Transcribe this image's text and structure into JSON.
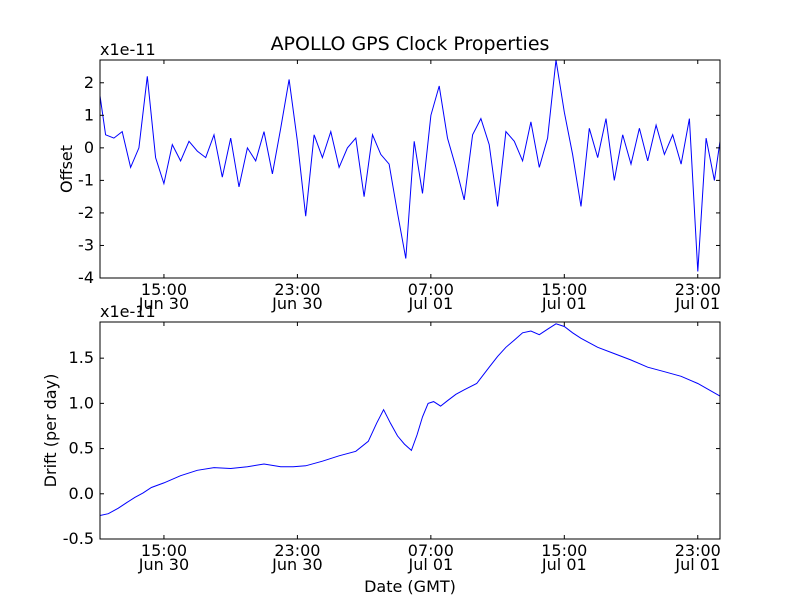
{
  "figure": {
    "title": "APOLLO GPS Clock Properties"
  },
  "chart_data": [
    {
      "type": "line",
      "title": "APOLLO GPS Clock Properties",
      "xlabel": "",
      "ylabel": "Offset",
      "y_exponent_label": "x1e-11",
      "xlim": [
        "Jun 30 11:10",
        "Jul 01 24:20"
      ],
      "ylim": [
        -4,
        2.7
      ],
      "yticks": [
        -4,
        -3,
        -2,
        -1,
        0,
        1,
        2
      ],
      "xticks": [
        {
          "time": "Jun 30 15:00",
          "line1": "15:00",
          "line2": "Jun 30"
        },
        {
          "time": "Jun 30 23:00",
          "line1": "23:00",
          "line2": "Jun 30"
        },
        {
          "time": "Jul 01 07:00",
          "line1": "07:00",
          "line2": "Jul 01"
        },
        {
          "time": "Jul 01 15:00",
          "line1": "15:00",
          "line2": "Jul 01"
        },
        {
          "time": "Jul 01 23:00",
          "line1": "23:00",
          "line2": "Jul 01"
        }
      ],
      "color": "#0000ff",
      "grid": false,
      "series": [
        {
          "x": [
            "Jun 30 11:10",
            "Jun 30 11:30",
            "Jun 30 12:00",
            "Jun 30 12:30",
            "Jun 30 13:00",
            "Jun 30 13:30",
            "Jun 30 14:00",
            "Jun 30 14:30",
            "Jun 30 15:00",
            "Jun 30 15:30",
            "Jun 30 16:00",
            "Jun 30 16:30",
            "Jun 30 17:00",
            "Jun 30 17:30",
            "Jun 30 18:00",
            "Jun 30 18:30",
            "Jun 30 19:00",
            "Jun 30 19:30",
            "Jun 30 20:00",
            "Jun 30 20:30",
            "Jun 30 21:00",
            "Jun 30 21:30",
            "Jun 30 22:00",
            "Jun 30 22:30",
            "Jun 30 23:00",
            "Jun 30 23:30",
            "Jul 01 00:00",
            "Jul 01 00:30",
            "Jul 01 01:00",
            "Jul 01 01:30",
            "Jul 01 02:00",
            "Jul 01 02:30",
            "Jul 01 03:00",
            "Jul 01 03:30",
            "Jul 01 04:00",
            "Jul 01 04:30",
            "Jul 01 05:00",
            "Jul 01 05:30",
            "Jul 01 06:00",
            "Jul 01 06:30",
            "Jul 01 07:00",
            "Jul 01 07:30",
            "Jul 01 08:00",
            "Jul 01 08:30",
            "Jul 01 09:00",
            "Jul 01 09:30",
            "Jul 01 10:00",
            "Jul 01 10:30",
            "Jul 01 11:00",
            "Jul 01 11:30",
            "Jul 01 12:00",
            "Jul 01 12:30",
            "Jul 01 13:00",
            "Jul 01 13:30",
            "Jul 01 14:00",
            "Jul 01 14:30",
            "Jul 01 15:00",
            "Jul 01 15:30",
            "Jul 01 16:00",
            "Jul 01 16:30",
            "Jul 01 17:00",
            "Jul 01 17:30",
            "Jul 01 18:00",
            "Jul 01 18:30",
            "Jul 01 19:00",
            "Jul 01 19:30",
            "Jul 01 20:00",
            "Jul 01 20:30",
            "Jul 01 21:00",
            "Jul 01 21:30",
            "Jul 01 22:00",
            "Jul 01 22:30",
            "Jul 01 23:00",
            "Jul 01 23:30",
            "Jul 01 24:00",
            "Jul 01 24:20"
          ],
          "y": [
            1.6,
            0.4,
            0.3,
            0.5,
            -0.6,
            0.0,
            2.2,
            -0.3,
            -1.1,
            0.1,
            -0.4,
            0.2,
            -0.1,
            -0.3,
            0.4,
            -0.9,
            0.3,
            -1.2,
            0.0,
            -0.4,
            0.5,
            -0.8,
            0.6,
            2.1,
            0.2,
            -2.1,
            0.4,
            -0.3,
            0.5,
            -0.6,
            0.0,
            0.3,
            -1.5,
            0.4,
            -0.2,
            -0.5,
            -2.0,
            -3.4,
            0.2,
            -1.4,
            1.0,
            1.9,
            0.3,
            -0.6,
            -1.6,
            0.4,
            0.9,
            0.1,
            -1.8,
            0.5,
            0.2,
            -0.4,
            0.8,
            -0.6,
            0.3,
            2.7,
            1.1,
            -0.2,
            -1.8,
            0.6,
            -0.3,
            0.9,
            -1.0,
            0.4,
            -0.5,
            0.6,
            -0.4,
            0.7,
            -0.2,
            0.4,
            -0.5,
            0.9,
            -3.8,
            0.3,
            -1.0,
            0.2
          ]
        }
      ]
    },
    {
      "type": "line",
      "title": "",
      "xlabel": "Date (GMT)",
      "ylabel": "Drift (per day)",
      "y_exponent_label": "x1e-11",
      "xlim": [
        "Jun 30 11:10",
        "Jul 01 24:20"
      ],
      "ylim": [
        -0.5,
        1.9
      ],
      "yticks": [
        -0.5,
        0.0,
        0.5,
        1.0,
        1.5
      ],
      "ytick_labels": [
        "-0.5",
        "0.0",
        "0.5",
        "1.0",
        "1.5"
      ],
      "xticks": [
        {
          "time": "Jun 30 15:00",
          "line1": "15:00",
          "line2": "Jun 30"
        },
        {
          "time": "Jun 30 23:00",
          "line1": "23:00",
          "line2": "Jun 30"
        },
        {
          "time": "Jul 01 07:00",
          "line1": "07:00",
          "line2": "Jul 01"
        },
        {
          "time": "Jul 01 15:00",
          "line1": "15:00",
          "line2": "Jul 01"
        },
        {
          "time": "Jul 01 23:00",
          "line1": "23:00",
          "line2": "Jul 01"
        }
      ],
      "color": "#0000ff",
      "grid": false,
      "series": [
        {
          "x": [
            "Jun 30 11:10",
            "Jun 30 11:40",
            "Jun 30 12:15",
            "Jun 30 12:45",
            "Jun 30 13:15",
            "Jun 30 13:45",
            "Jun 30 14:15",
            "Jun 30 15:00",
            "Jun 30 16:00",
            "Jun 30 17:00",
            "Jun 30 18:00",
            "Jun 30 19:00",
            "Jun 30 20:00",
            "Jun 30 21:00",
            "Jun 30 22:00",
            "Jun 30 22:45",
            "Jun 30 23:30",
            "Jul 01 00:30",
            "Jul 01 01:30",
            "Jul 01 02:30",
            "Jul 01 03:15",
            "Jul 01 03:45",
            "Jul 01 04:10",
            "Jul 01 04:35",
            "Jul 01 05:00",
            "Jul 01 05:25",
            "Jul 01 05:50",
            "Jul 01 06:10",
            "Jul 01 06:30",
            "Jul 01 06:50",
            "Jul 01 07:10",
            "Jul 01 07:35",
            "Jul 01 08:00",
            "Jul 01 08:30",
            "Jul 01 09:00",
            "Jul 01 09:45",
            "Jul 01 10:30",
            "Jul 01 11:00",
            "Jul 01 11:30",
            "Jul 01 12:00",
            "Jul 01 12:30",
            "Jul 01 13:00",
            "Jul 01 13:30",
            "Jul 01 14:00",
            "Jul 01 14:30",
            "Jul 01 15:00",
            "Jul 01 15:30",
            "Jul 01 16:00",
            "Jul 01 17:00",
            "Jul 01 18:00",
            "Jul 01 19:00",
            "Jul 01 20:00",
            "Jul 01 21:00",
            "Jul 01 22:00",
            "Jul 01 23:00",
            "Jul 01 24:20"
          ],
          "y": [
            -0.24,
            -0.22,
            -0.16,
            -0.1,
            -0.04,
            0.01,
            0.07,
            0.12,
            0.2,
            0.26,
            0.29,
            0.28,
            0.3,
            0.33,
            0.3,
            0.3,
            0.31,
            0.36,
            0.42,
            0.47,
            0.58,
            0.78,
            0.93,
            0.78,
            0.64,
            0.55,
            0.48,
            0.65,
            0.85,
            1.0,
            1.02,
            0.97,
            1.03,
            1.1,
            1.15,
            1.22,
            1.4,
            1.52,
            1.62,
            1.7,
            1.78,
            1.8,
            1.76,
            1.82,
            1.88,
            1.85,
            1.78,
            1.72,
            1.62,
            1.55,
            1.48,
            1.4,
            1.35,
            1.3,
            1.22,
            1.08
          ]
        }
      ]
    }
  ]
}
